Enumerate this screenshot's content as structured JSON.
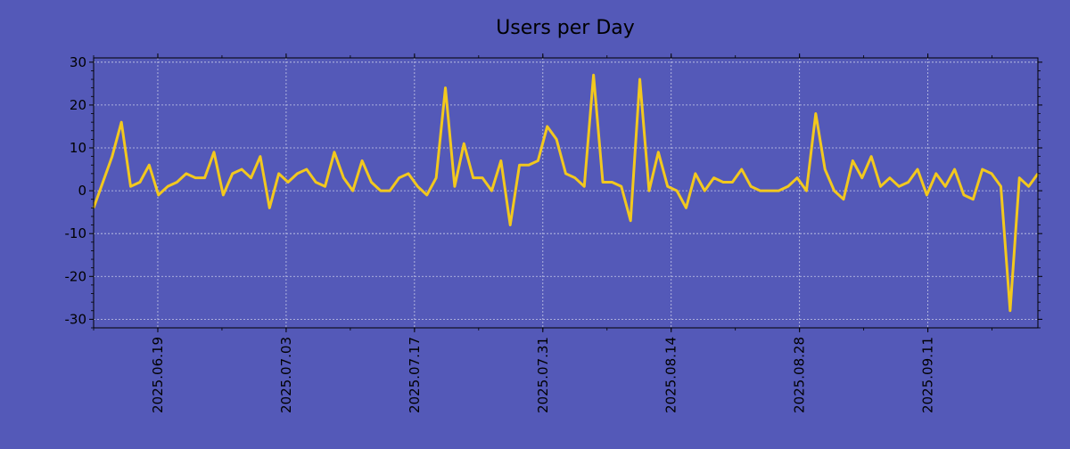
{
  "chart_data": {
    "type": "line",
    "title": "Users per Day",
    "xlabel": "",
    "ylabel": "",
    "ylim": [
      -32,
      31
    ],
    "yticks": [
      -30,
      -20,
      -10,
      0,
      10,
      20,
      30
    ],
    "x_start": "2025-06-12",
    "x_end": "2025-09-23",
    "xtick_labels": [
      "2025.06.19",
      "2025.07.03",
      "2025.07.17",
      "2025.07.31",
      "2025.08.14",
      "2025.08.28",
      "2025.09.11"
    ],
    "grid": true,
    "colors": {
      "background": "#5459b8",
      "line": "#f2c81e",
      "grid": "#c8cbe8",
      "axes": "#000000"
    },
    "series": [
      {
        "name": "Users",
        "values": [
          -4,
          2,
          8,
          16,
          1,
          2,
          6,
          -1,
          1,
          2,
          4,
          3,
          3,
          9,
          -1,
          4,
          5,
          3,
          8,
          -4,
          4,
          2,
          4,
          5,
          2,
          1,
          9,
          3,
          0,
          7,
          2,
          0,
          0,
          3,
          4,
          1,
          -1,
          3,
          24,
          1,
          11,
          3,
          3,
          0,
          7,
          -8,
          6,
          6,
          7,
          15,
          12,
          4,
          3,
          1,
          27,
          2,
          2,
          1,
          -7,
          26,
          0,
          9,
          1,
          0,
          -4,
          4,
          0,
          3,
          2,
          2,
          5,
          1,
          0,
          0,
          0,
          1,
          3,
          0,
          18,
          5,
          0,
          -2,
          7,
          3,
          8,
          1,
          3,
          1,
          2,
          5,
          -1,
          4,
          1,
          5,
          -1,
          -2,
          5,
          4,
          1,
          -28,
          3,
          1,
          4
        ]
      }
    ]
  }
}
